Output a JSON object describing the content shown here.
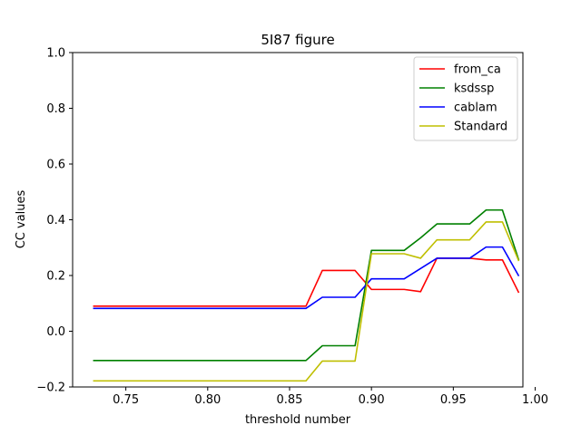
{
  "chart_data": {
    "type": "line",
    "title": "5I87 figure",
    "xlabel": "threshold number",
    "ylabel": "CC values",
    "xlim": [
      0.7175,
      0.9925
    ],
    "ylim": [
      -0.2,
      1.0
    ],
    "xticks": [
      0.75,
      0.8,
      0.85,
      0.9,
      0.95,
      1.0
    ],
    "xtick_labels": [
      "0.75",
      "0.80",
      "0.85",
      "0.90",
      "0.95",
      "1.00"
    ],
    "yticks": [
      -0.2,
      0.0,
      0.2,
      0.4,
      0.6,
      0.8,
      1.0
    ],
    "ytick_labels": [
      "−0.2",
      "0.0",
      "0.2",
      "0.4",
      "0.6",
      "0.8",
      "1.0"
    ],
    "grid": false,
    "legend_position": "top-right",
    "x": [
      0.73,
      0.74,
      0.75,
      0.76,
      0.77,
      0.78,
      0.79,
      0.8,
      0.81,
      0.82,
      0.83,
      0.84,
      0.85,
      0.86,
      0.87,
      0.88,
      0.89,
      0.9,
      0.91,
      0.92,
      0.93,
      0.94,
      0.95,
      0.96,
      0.97,
      0.98,
      0.99
    ],
    "series": [
      {
        "name": "from_ca",
        "color": "#ff0000",
        "values": [
          0.09,
          0.09,
          0.09,
          0.09,
          0.09,
          0.09,
          0.09,
          0.09,
          0.09,
          0.09,
          0.09,
          0.09,
          0.09,
          0.09,
          0.218,
          0.218,
          0.218,
          0.15,
          0.15,
          0.15,
          0.142,
          0.262,
          0.262,
          0.262,
          0.256,
          0.256,
          0.138
        ]
      },
      {
        "name": "ksdssp",
        "color": "#008000",
        "values": [
          -0.105,
          -0.105,
          -0.105,
          -0.105,
          -0.105,
          -0.105,
          -0.105,
          -0.105,
          -0.105,
          -0.105,
          -0.105,
          -0.105,
          -0.105,
          -0.105,
          -0.052,
          -0.052,
          -0.052,
          0.29,
          0.29,
          0.29,
          0.335,
          0.385,
          0.385,
          0.385,
          0.435,
          0.435,
          0.255
        ]
      },
      {
        "name": "cablam",
        "color": "#0000ff",
        "values": [
          0.082,
          0.082,
          0.082,
          0.082,
          0.082,
          0.082,
          0.082,
          0.082,
          0.082,
          0.082,
          0.082,
          0.082,
          0.082,
          0.082,
          0.122,
          0.122,
          0.122,
          0.188,
          0.188,
          0.188,
          0.225,
          0.262,
          0.262,
          0.262,
          0.302,
          0.302,
          0.198
        ]
      },
      {
        "name": "Standard",
        "color": "#bfbf00",
        "values": [
          -0.178,
          -0.178,
          -0.178,
          -0.178,
          -0.178,
          -0.178,
          -0.178,
          -0.178,
          -0.178,
          -0.178,
          -0.178,
          -0.178,
          -0.178,
          -0.178,
          -0.107,
          -0.107,
          -0.107,
          0.278,
          0.278,
          0.278,
          0.262,
          0.328,
          0.328,
          0.328,
          0.392,
          0.392,
          0.252
        ]
      }
    ]
  }
}
